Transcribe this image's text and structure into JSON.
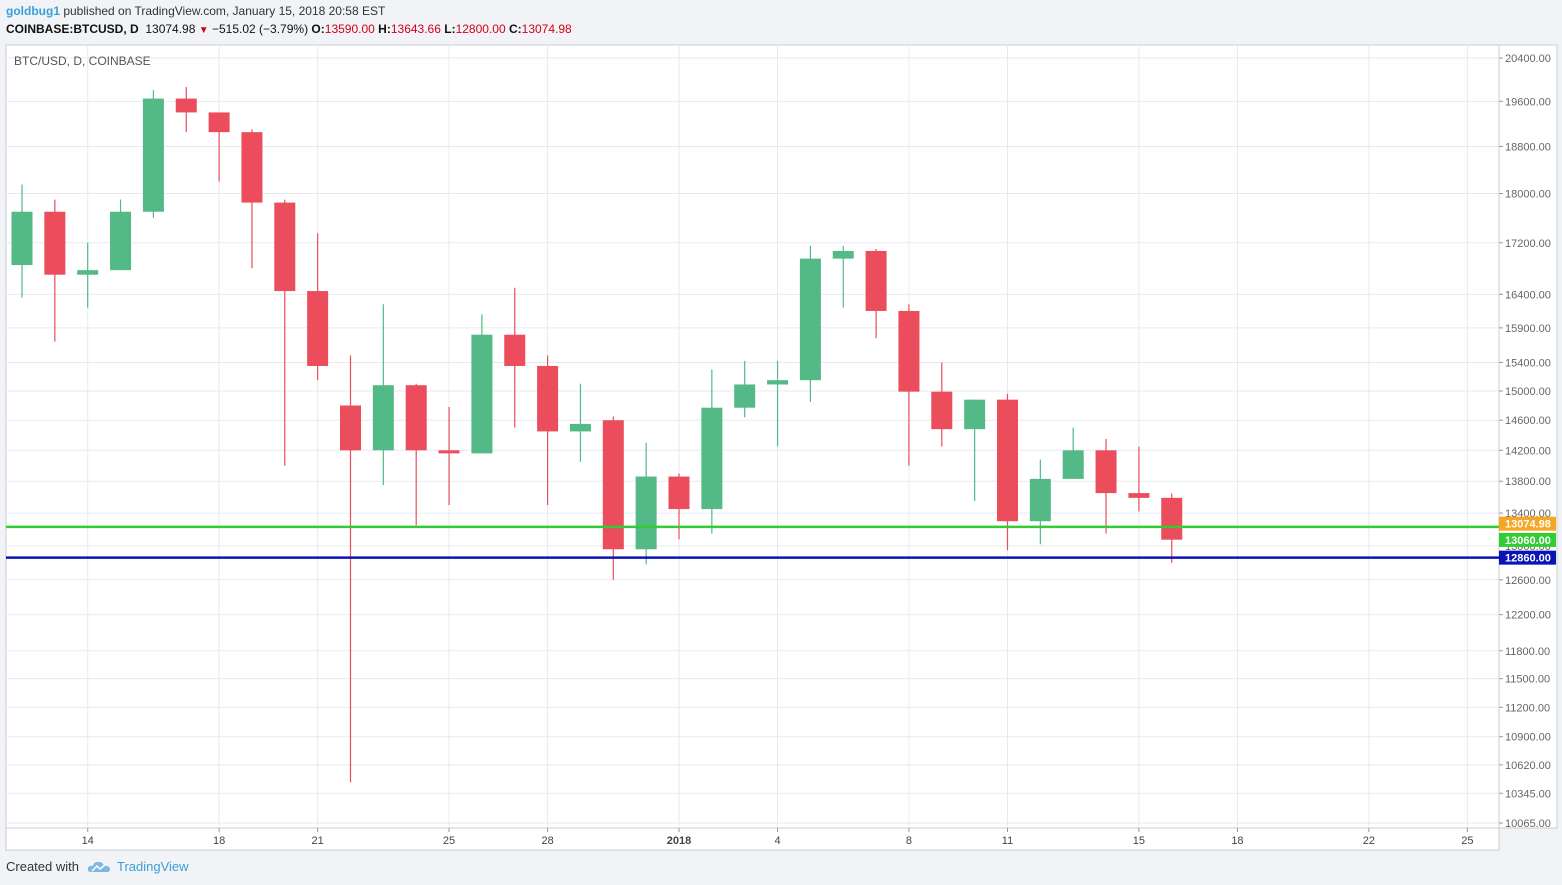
{
  "header": {
    "author": "goldbug1",
    "published_text": " published on TradingView.com, January 15, 2018 20:58 EST",
    "symbol": "COINBASE:BTCUSD, D",
    "last": "13074.98",
    "change": "−515.02 (−3.79%)",
    "o_label": "O:",
    "o_value": "13590.00",
    "h_label": "H:",
    "h_value": "13643.66",
    "l_label": "L:",
    "l_value": "12800.00",
    "c_label": "C:",
    "c_value": "13074.98"
  },
  "footer": {
    "created_with": "Created with",
    "brand": "TradingView"
  },
  "colors": {
    "up": "#53b987",
    "down": "#eb4d5c",
    "grid": "#e6eaef",
    "axis": "#666666",
    "green_line": "#33cc33",
    "blue_line": "#0a14b4",
    "last_price_tag": "#f5a623"
  },
  "chart_data": {
    "type": "candlestick",
    "title": "BTC/USD, D, COINBASE",
    "y_scale": "log",
    "ylim": [
      9900,
      20900
    ],
    "y_ticks": [
      20400,
      19600,
      18800,
      18000,
      17200,
      16400,
      15900,
      15400,
      15000,
      14600,
      14200,
      13800,
      13400,
      13000,
      12600,
      12200,
      11800,
      11500,
      11200,
      10900,
      10620,
      10345,
      10065
    ],
    "y_tick_labels": [
      "20400.00",
      "19600.00",
      "18800.00",
      "18000.00",
      "17200.00",
      "16400.00",
      "15900.00",
      "15400.00",
      "15000.00",
      "14600.00",
      "14200.00",
      "13800.00",
      "13400.00",
      "13000.00",
      "12600.00",
      "12200.00",
      "11800.00",
      "11500.00",
      "11200.00",
      "10900.00",
      "10620.00",
      "10345.00",
      "10065.00"
    ],
    "x_start": "2017-12-12",
    "x_labels": [
      {
        "date": "2017-12-14",
        "label": "14"
      },
      {
        "date": "2017-12-18",
        "label": "18"
      },
      {
        "date": "2017-12-21",
        "label": "21"
      },
      {
        "date": "2017-12-25",
        "label": "25"
      },
      {
        "date": "2017-12-28",
        "label": "28"
      },
      {
        "date": "2018-01-01",
        "label": "2018"
      },
      {
        "date": "2018-01-04",
        "label": "4"
      },
      {
        "date": "2018-01-08",
        "label": "8"
      },
      {
        "date": "2018-01-11",
        "label": "11"
      },
      {
        "date": "2018-01-15",
        "label": "15"
      },
      {
        "date": "2018-01-18",
        "label": "18"
      },
      {
        "date": "2018-01-22",
        "label": "22"
      },
      {
        "date": "2018-01-25",
        "label": "25"
      }
    ],
    "candles": [
      {
        "date": "2017-12-12",
        "o": 16850,
        "h": 18150,
        "l": 16350,
        "c": 17700
      },
      {
        "date": "2017-12-13",
        "o": 17700,
        "h": 17900,
        "l": 15700,
        "c": 16700
      },
      {
        "date": "2017-12-14",
        "o": 16700,
        "h": 17200,
        "l": 16200,
        "c": 16770
      },
      {
        "date": "2017-12-15",
        "o": 16770,
        "h": 17900,
        "l": 16770,
        "c": 17700
      },
      {
        "date": "2017-12-16",
        "o": 17700,
        "h": 19800,
        "l": 17600,
        "c": 19650
      },
      {
        "date": "2017-12-17",
        "o": 19650,
        "h": 19860,
        "l": 19050,
        "c": 19400
      },
      {
        "date": "2017-12-18",
        "o": 19400,
        "h": 19400,
        "l": 18200,
        "c": 19050
      },
      {
        "date": "2017-12-19",
        "o": 19050,
        "h": 19100,
        "l": 16800,
        "c": 17850
      },
      {
        "date": "2017-12-20",
        "o": 17850,
        "h": 17900,
        "l": 14000,
        "c": 16450
      },
      {
        "date": "2017-12-21",
        "o": 16450,
        "h": 17350,
        "l": 15150,
        "c": 15350
      },
      {
        "date": "2017-12-22",
        "o": 14800,
        "h": 15500,
        "l": 10450,
        "c": 14200
      },
      {
        "date": "2017-12-23",
        "o": 14200,
        "h": 16250,
        "l": 13750,
        "c": 15080
      },
      {
        "date": "2017-12-24",
        "o": 15080,
        "h": 15100,
        "l": 13250,
        "c": 14200
      },
      {
        "date": "2017-12-25",
        "o": 14200,
        "h": 14780,
        "l": 13500,
        "c": 14160
      },
      {
        "date": "2017-12-26",
        "o": 14160,
        "h": 16100,
        "l": 14160,
        "c": 15800
      },
      {
        "date": "2017-12-27",
        "o": 15800,
        "h": 16500,
        "l": 14500,
        "c": 15350
      },
      {
        "date": "2017-12-28",
        "o": 15350,
        "h": 15500,
        "l": 13500,
        "c": 14450
      },
      {
        "date": "2017-12-29",
        "o": 14450,
        "h": 15100,
        "l": 14050,
        "c": 14550
      },
      {
        "date": "2017-12-30",
        "o": 14600,
        "h": 14650,
        "l": 12600,
        "c": 12960
      },
      {
        "date": "2017-12-31",
        "o": 12960,
        "h": 14300,
        "l": 12780,
        "c": 13860
      },
      {
        "date": "2018-01-01",
        "o": 13860,
        "h": 13900,
        "l": 13080,
        "c": 13450
      },
      {
        "date": "2018-01-02",
        "o": 13450,
        "h": 15300,
        "l": 13150,
        "c": 14770
      },
      {
        "date": "2018-01-03",
        "o": 14770,
        "h": 15420,
        "l": 14640,
        "c": 15090
      },
      {
        "date": "2018-01-04",
        "o": 15090,
        "h": 15420,
        "l": 14250,
        "c": 15150
      },
      {
        "date": "2018-01-05",
        "o": 15150,
        "h": 17150,
        "l": 14850,
        "c": 16950
      },
      {
        "date": "2018-01-06",
        "o": 16950,
        "h": 17150,
        "l": 16200,
        "c": 17070
      },
      {
        "date": "2018-01-07",
        "o": 17070,
        "h": 17100,
        "l": 15750,
        "c": 16150
      },
      {
        "date": "2018-01-08",
        "o": 16150,
        "h": 16250,
        "l": 14000,
        "c": 14990
      },
      {
        "date": "2018-01-09",
        "o": 14990,
        "h": 15400,
        "l": 14250,
        "c": 14480
      },
      {
        "date": "2018-01-10",
        "o": 14480,
        "h": 14880,
        "l": 13550,
        "c": 14880
      },
      {
        "date": "2018-01-11",
        "o": 14880,
        "h": 14960,
        "l": 12950,
        "c": 13300
      },
      {
        "date": "2018-01-12",
        "o": 13300,
        "h": 14080,
        "l": 13020,
        "c": 13830
      },
      {
        "date": "2018-01-13",
        "o": 13830,
        "h": 14500,
        "l": 13830,
        "c": 14200
      },
      {
        "date": "2018-01-14",
        "o": 14200,
        "h": 14350,
        "l": 13150,
        "c": 13650
      },
      {
        "date": "2018-01-15",
        "o": 13650,
        "h": 14250,
        "l": 13420,
        "c": 13590
      },
      {
        "date": "2018-01-16",
        "o": 13590,
        "h": 13643.66,
        "l": 12800,
        "c": 13074.98
      }
    ],
    "hlines": [
      {
        "name": "green-horizontal-line",
        "value": 13060,
        "label": "13060.00",
        "color": "#33cc33"
      },
      {
        "name": "blue-horizontal-line",
        "value": 12860,
        "label": "12860.00",
        "color": "#0a14b4"
      }
    ],
    "last_price": {
      "value": 13074.98,
      "label": "13074.98"
    }
  }
}
